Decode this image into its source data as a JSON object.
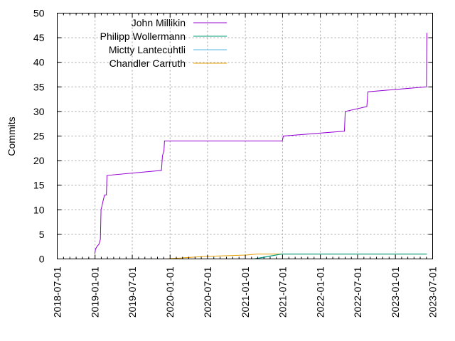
{
  "chart_data": {
    "type": "line",
    "title": "",
    "xlabel": "",
    "ylabel": "Commits",
    "xlim": [
      "2018-07-01",
      "2023-07-01"
    ],
    "ylim": [
      0,
      50
    ],
    "grid": true,
    "legend_position": "top-left",
    "x_ticks": [
      "2018-07-01",
      "2019-01-01",
      "2019-07-01",
      "2020-01-01",
      "2020-07-01",
      "2021-01-01",
      "2021-07-01",
      "2022-01-01",
      "2022-07-01",
      "2023-01-01",
      "2023-07-01"
    ],
    "y_ticks": [
      0,
      5,
      10,
      15,
      20,
      25,
      30,
      35,
      40,
      45,
      50
    ],
    "series": [
      {
        "name": "John Millikin",
        "color": "#9400d3",
        "points": [
          [
            "2018-12-31",
            1
          ],
          [
            "2019-01-03",
            2
          ],
          [
            "2019-01-10",
            2.5
          ],
          [
            "2019-01-20",
            3
          ],
          [
            "2019-01-27",
            4
          ],
          [
            "2019-01-30",
            10
          ],
          [
            "2019-02-05",
            11
          ],
          [
            "2019-02-10",
            12
          ],
          [
            "2019-02-16",
            13
          ],
          [
            "2019-02-25",
            13
          ],
          [
            "2019-02-28",
            17
          ],
          [
            "2019-11-20",
            18
          ],
          [
            "2019-11-25",
            21
          ],
          [
            "2019-12-02",
            22
          ],
          [
            "2019-12-05",
            24
          ],
          [
            "2021-06-30",
            24
          ],
          [
            "2021-07-05",
            25
          ],
          [
            "2022-04-28",
            26
          ],
          [
            "2022-05-02",
            30
          ],
          [
            "2022-08-15",
            31
          ],
          [
            "2022-08-20",
            34
          ],
          [
            "2023-06-01",
            35
          ],
          [
            "2023-06-03",
            46
          ]
        ]
      },
      {
        "name": "Philipp Wollermann",
        "color": "#009e73",
        "points": [
          [
            "2021-02-10",
            0
          ],
          [
            "2021-06-25",
            1
          ],
          [
            "2023-06-03",
            1
          ]
        ]
      },
      {
        "name": "Mictty Lantecuhtli",
        "color": "#56b4e9",
        "points": [
          [
            "2021-02-20",
            0
          ],
          [
            "2021-06-28",
            1
          ],
          [
            "2023-06-03",
            1
          ]
        ]
      },
      {
        "name": "Chandler Carruth",
        "color": "#e69f00",
        "points": [
          [
            "2019-12-10",
            0
          ],
          [
            "2020-06-15",
            0.5
          ],
          [
            "2021-01-05",
            0.8
          ],
          [
            "2021-03-01",
            1
          ],
          [
            "2023-06-03",
            1
          ]
        ]
      }
    ]
  }
}
